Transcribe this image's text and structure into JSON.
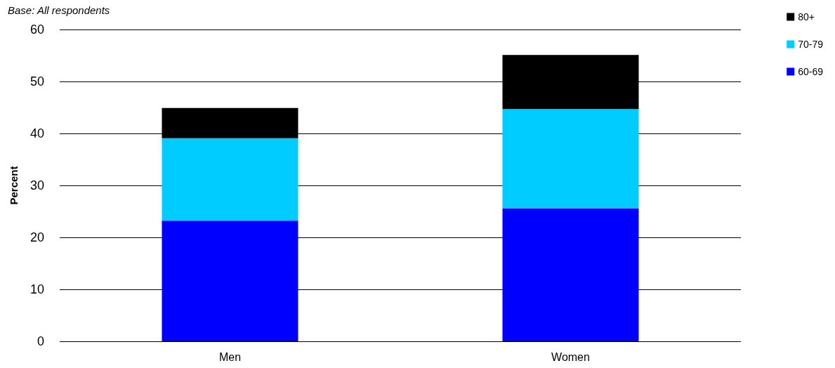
{
  "chart_data": {
    "type": "bar",
    "subtitle": "Base: All respondents",
    "ylabel": "Percent",
    "categories": [
      "Men",
      "Women"
    ],
    "stacked": true,
    "series": [
      {
        "name": "60-69",
        "color": "#0000ff",
        "values": [
          23.2,
          25.6
        ]
      },
      {
        "name": "70-79",
        "color": "#00ccff",
        "values": [
          15.9,
          19.1
        ]
      },
      {
        "name": "80+",
        "color": "#000000",
        "values": [
          5.8,
          10.4
        ]
      }
    ],
    "ylim": [
      0,
      60
    ],
    "yticks": [
      0,
      10,
      20,
      30,
      40,
      50,
      60
    ],
    "grid": "y",
    "legend": "top right"
  }
}
